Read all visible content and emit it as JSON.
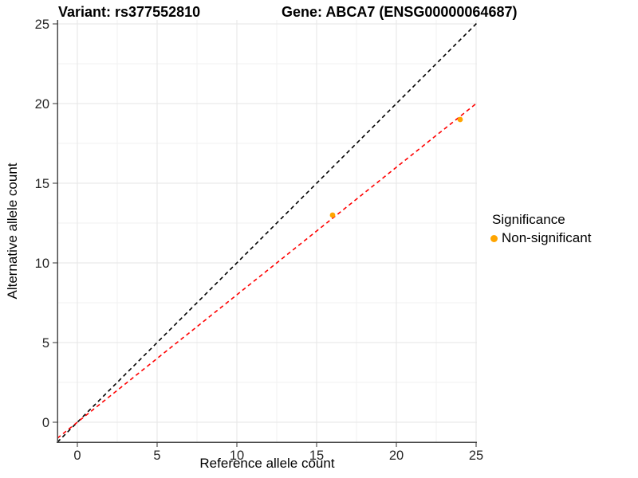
{
  "chart_data": {
    "type": "scatter",
    "titles": [
      "Variant: rs377552810",
      "Gene: ABCA7 (ENSG00000064687)"
    ],
    "xlabel": "Reference allele count",
    "ylabel": "Alternative allele count",
    "xlim": [
      -1.25,
      25.05
    ],
    "ylim": [
      -1.25,
      25.25
    ],
    "x_ticks": [
      0,
      5,
      10,
      15,
      20,
      25
    ],
    "y_ticks": [
      0,
      5,
      10,
      15,
      20,
      25
    ],
    "x_minor_ticks": [
      2.5,
      7.5,
      12.5,
      17.5,
      22.5
    ],
    "y_minor_ticks": [
      2.5,
      7.5,
      12.5,
      17.5,
      22.5
    ],
    "grid": "major+minor",
    "series": [
      {
        "name": "Non-significant",
        "color": "#FFA500",
        "marker": "dot",
        "points": [
          {
            "x": 16,
            "y": 13
          },
          {
            "x": 24,
            "y": 19
          }
        ]
      }
    ],
    "reference_lines": [
      {
        "name": "identity-line",
        "slope": 1,
        "intercept": 0,
        "color": "#000000",
        "style": "dashed"
      },
      {
        "name": "allelic-ratio-fit-line",
        "slope": 0.8,
        "intercept": 0,
        "color": "#FF0000",
        "style": "dashed"
      }
    ],
    "legend": {
      "title": "Significance",
      "position": "right",
      "items": [
        {
          "label": "Non-significant",
          "color": "#FFA500",
          "marker": "dot"
        }
      ]
    },
    "colors": {
      "background": "#FFFFFF",
      "grid_major": "#E6E6E6",
      "grid_minor": "#F2F2F2",
      "axis_line": "#4A4A4A",
      "tick": "#333333",
      "tick_label": "#262626",
      "text": "#000000"
    }
  }
}
